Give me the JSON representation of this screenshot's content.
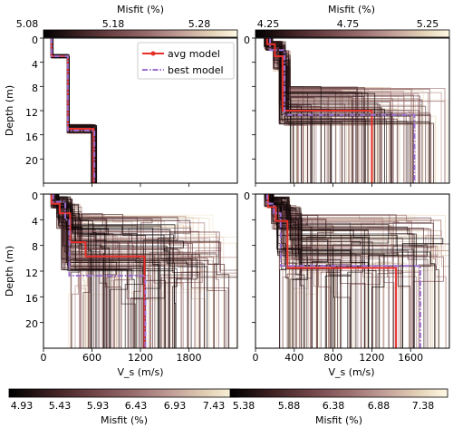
{
  "colors": {
    "avg": "#e8302a",
    "best": "#9b6fd1",
    "cmap": [
      "#000000",
      "#3b1f21",
      "#6e4346",
      "#9b6f70",
      "#c4a29a",
      "#e4d3b7",
      "#fffae6"
    ]
  },
  "colorbars": {
    "top_left": {
      "label": "Misfit (%)",
      "ticks": [
        "5.08",
        "5.18",
        "5.28"
      ]
    },
    "top_right": {
      "label": "Misfit (%)",
      "ticks": [
        "4.25",
        "4.75",
        "5.25"
      ]
    },
    "bottom_left": {
      "label": "Misfit (%)",
      "ticks": [
        "4.93",
        "5.43",
        "5.93",
        "6.43",
        "6.93",
        "7.43"
      ]
    },
    "bottom_right": {
      "label": "Misfit (%)",
      "ticks": [
        "5.38",
        "5.88",
        "6.38",
        "6.88",
        "7.38"
      ]
    }
  },
  "legend": {
    "avg": "avg model",
    "best": "best model"
  },
  "axes": {
    "ylabel": "Depth (m)",
    "xlabel": "V_s (m/s)",
    "yticks": [
      "0",
      "4",
      "8",
      "12",
      "16",
      "20"
    ],
    "xticks_left": [
      "0",
      "600",
      "1200",
      "1800"
    ],
    "xticks_right": [
      "0",
      "400",
      "800",
      "1200",
      "1600"
    ]
  },
  "chart_data": [
    {
      "type": "line",
      "panel": "top-left",
      "xlabel": "",
      "ylabel": "Depth (m)",
      "xlim": [
        0,
        2400
      ],
      "ylim": [
        24,
        0
      ],
      "series": [
        {
          "name": "avg model",
          "x": [
            100,
            100,
            300,
            300,
            620,
            620
          ],
          "y": [
            0,
            3,
            3,
            15,
            15,
            24
          ]
        },
        {
          "name": "best model",
          "x": [
            100,
            100,
            300,
            300,
            630,
            630
          ],
          "y": [
            0,
            3,
            3,
            15.3,
            15.3,
            24
          ]
        }
      ]
    },
    {
      "type": "line",
      "panel": "top-right",
      "xlabel": "",
      "ylabel": "",
      "xlim": [
        0,
        2000
      ],
      "ylim": [
        24,
        0
      ],
      "series": [
        {
          "name": "avg model",
          "x": [
            120,
            120,
            200,
            200,
            280,
            280,
            1200,
            1200
          ],
          "y": [
            0,
            1,
            1,
            3,
            3,
            12,
            12,
            24
          ]
        },
        {
          "name": "best model",
          "x": [
            150,
            150,
            300,
            300,
            1640,
            1640
          ],
          "y": [
            0,
            2,
            2,
            12.7,
            12.7,
            24
          ]
        }
      ]
    },
    {
      "type": "line",
      "panel": "bottom-left",
      "xlabel": "V_s (m/s)",
      "ylabel": "Depth (m)",
      "xlim": [
        0,
        2400
      ],
      "ylim": [
        24,
        0
      ],
      "series": [
        {
          "name": "avg model",
          "x": [
            100,
            100,
            200,
            200,
            330,
            330,
            520,
            520,
            1250,
            1250
          ],
          "y": [
            0,
            1.5,
            1.5,
            3,
            3,
            7.5,
            7.5,
            9.7,
            9.7,
            24
          ]
        },
        {
          "name": "best model",
          "x": [
            120,
            120,
            270,
            270,
            320,
            320,
            1260,
            1260
          ],
          "y": [
            0,
            1.2,
            1.2,
            4,
            4,
            12.7,
            12.7,
            24
          ]
        }
      ]
    },
    {
      "type": "line",
      "panel": "bottom-right",
      "xlabel": "V_s (m/s)",
      "ylabel": "",
      "xlim": [
        0,
        2000
      ],
      "ylim": [
        24,
        0
      ],
      "series": [
        {
          "name": "avg model",
          "x": [
            130,
            130,
            210,
            210,
            330,
            330,
            1450,
            1450
          ],
          "y": [
            0,
            2,
            2,
            4.2,
            4.2,
            11.5,
            11.5,
            24
          ]
        },
        {
          "name": "best model",
          "x": [
            120,
            120,
            190,
            190,
            260,
            260,
            1700,
            1700
          ],
          "y": [
            0,
            1.5,
            1.5,
            3,
            3,
            11.2,
            11.2,
            24
          ]
        }
      ]
    }
  ]
}
